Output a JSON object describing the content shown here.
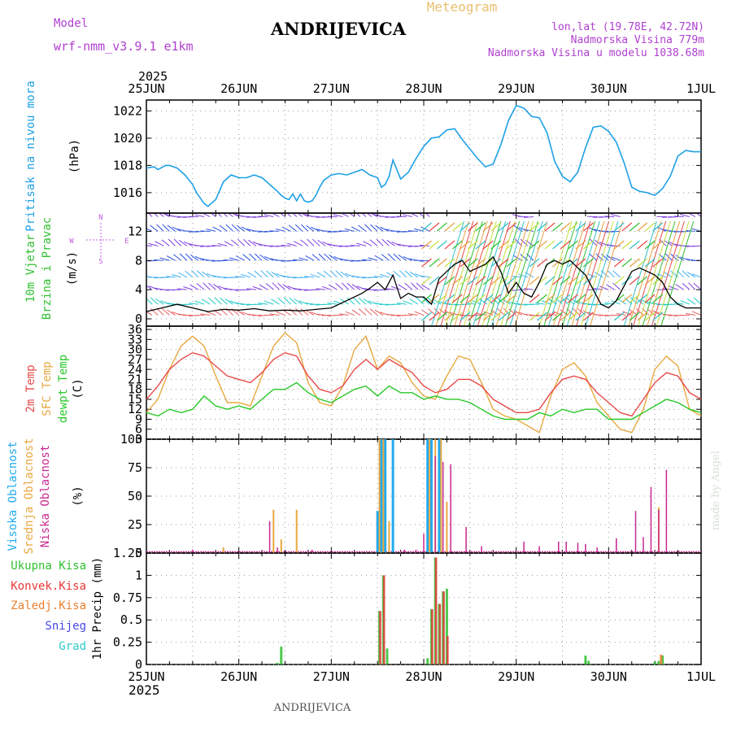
{
  "header": {
    "model_label": "Model",
    "model_value": "wrf-nmm_v3.9.1  e1km",
    "station": "ANDRIJEVICA",
    "product": "Meteogram",
    "coords": "lon,lat (19.78E, 42.72N)",
    "elevation": "Nadmorska Visina 779m",
    "model_elevation": "Nadmorska Visina u modelu 1038.68m",
    "footer_station": "ANDRIJEVICA",
    "credit": "made by Angel"
  },
  "colors": {
    "pressure": "#1ea0e6",
    "temp2m": "#e84848",
    "sfc": "#e8a840",
    "dew": "#28c828",
    "high_cloud": "#22aaee",
    "mid_cloud": "#e8a840",
    "low_cloud": "#c82890",
    "precip_total": "#30c030",
    "precip_conv": "#e83838",
    "precip_frozen": "#e88030",
    "snow": "#4848e8",
    "hail": "#30c8c8",
    "wind_speed_line": "#000000"
  },
  "chart_data": [
    {
      "type": "line",
      "id": "pressure",
      "top_dates": [
        "25JUN",
        "26JUN",
        "27JUN",
        "28JUN",
        "29JUN",
        "30JUN",
        "1JUL"
      ],
      "top_year": "2025",
      "ylabel_lines": [
        "Pritisak na nivou mora",
        "(hPa)"
      ],
      "yticks": [
        1016,
        1018,
        1020,
        1022
      ],
      "ylim": [
        1014.5,
        1022.8
      ],
      "xlim": [
        0,
        144
      ],
      "series": [
        {
          "x": [
            0,
            2,
            3,
            5,
            6,
            8,
            10,
            12,
            13,
            14,
            15,
            16,
            18,
            20,
            22,
            24,
            26,
            28,
            30,
            32,
            34,
            35,
            36,
            37,
            38,
            39,
            40,
            41,
            42,
            43,
            44,
            45,
            46,
            48,
            50,
            52,
            54,
            56,
            58,
            60,
            61,
            62,
            63,
            64,
            66,
            68,
            70,
            72,
            74,
            76,
            78,
            80,
            82,
            84,
            86,
            88,
            90,
            92,
            94,
            96,
            98,
            100,
            102,
            104,
            106,
            108,
            110,
            112,
            114,
            116,
            118,
            120,
            122,
            124,
            126,
            128,
            130,
            132,
            134,
            136,
            138,
            140,
            142,
            144
          ],
          "y": [
            1017.8,
            1017.9,
            1017.7,
            1018.0,
            1018.0,
            1017.8,
            1017.3,
            1016.6,
            1016.0,
            1015.6,
            1015.2,
            1015.0,
            1015.5,
            1016.8,
            1017.3,
            1017.1,
            1017.1,
            1017.3,
            1017.1,
            1016.6,
            1016.1,
            1015.8,
            1015.6,
            1015.5,
            1015.9,
            1015.4,
            1015.9,
            1015.4,
            1015.3,
            1015.4,
            1015.8,
            1016.4,
            1016.9,
            1017.3,
            1017.4,
            1017.3,
            1017.5,
            1017.7,
            1017.3,
            1017.1,
            1016.4,
            1016.6,
            1017.2,
            1018.4,
            1017.0,
            1017.5,
            1018.5,
            1019.4,
            1020.0,
            1020.1,
            1020.6,
            1020.7,
            1019.9,
            1019.2,
            1018.5,
            1017.9,
            1018.1,
            1019.5,
            1021.3,
            1022.4,
            1022.2,
            1021.6,
            1021.5,
            1020.4,
            1018.3,
            1017.2,
            1016.8,
            1017.5,
            1019.3,
            1020.8,
            1020.9,
            1020.5,
            1019.7,
            1018.2,
            1016.4,
            1016.1,
            1016.0,
            1015.8,
            1016.3,
            1017.2,
            1018.7,
            1019.1,
            1019.0,
            1019.0
          ]
        }
      ]
    },
    {
      "type": "line",
      "id": "wind",
      "ylabel_lines": [
        "10m Vjetar",
        "Brzina i Pravac",
        "(m/s)"
      ],
      "compass": {
        "n": "N",
        "e": "E",
        "s": "S",
        "w": "W"
      },
      "yticks": [
        0,
        4,
        8,
        12
      ],
      "ylim": [
        -1,
        14.5
      ],
      "xlim": [
        0,
        144
      ],
      "barb_levels": [
        0.5,
        2,
        4,
        5.7,
        8,
        10,
        12,
        14
      ],
      "barb_row_colors": [
        "#e86060",
        "#22c8c8",
        "#8040e0",
        "#40b0f0",
        "#2850e0",
        "#8040e0",
        "#2850e0",
        "#8040e0"
      ],
      "gust_zone_colors": [
        "#e8a040",
        "#e84848",
        "#c8e040",
        "#30c030",
        "#30c0c8"
      ],
      "gust_zones": [
        [
          74,
          96
        ],
        [
          102,
          116
        ],
        [
          124,
          134
        ]
      ],
      "series": [
        {
          "name": "Brzina",
          "x": [
            0,
            4,
            8,
            12,
            16,
            20,
            24,
            28,
            32,
            36,
            40,
            44,
            48,
            52,
            56,
            58,
            60,
            62,
            64,
            66,
            68,
            70,
            72,
            74,
            76,
            78,
            80,
            82,
            84,
            86,
            88,
            90,
            92,
            94,
            96,
            98,
            100,
            102,
            104,
            106,
            108,
            110,
            112,
            114,
            116,
            118,
            120,
            122,
            124,
            126,
            128,
            130,
            132,
            134,
            136,
            138,
            140,
            142,
            144
          ],
          "y": [
            1.0,
            1.5,
            2.0,
            1.5,
            1.0,
            1.3,
            1.2,
            1.4,
            1.1,
            1.2,
            1.1,
            1.3,
            1.5,
            2.5,
            3.5,
            4.2,
            5.0,
            4.0,
            6.0,
            2.8,
            3.5,
            3.0,
            3.0,
            2.0,
            5.5,
            6.5,
            7.5,
            8.0,
            6.5,
            7.0,
            7.5,
            8.5,
            6.5,
            3.5,
            5.0,
            3.5,
            3.0,
            5.0,
            7.5,
            8.0,
            7.5,
            8.0,
            7.0,
            6.0,
            4.0,
            2.0,
            1.5,
            2.5,
            4.5,
            6.5,
            7.0,
            6.5,
            6.0,
            5.0,
            3.0,
            2.0,
            1.5,
            1.5,
            1.5
          ]
        }
      ]
    },
    {
      "type": "line",
      "id": "temperature",
      "ylabel_lines": [
        "2m Temp",
        "SFC Temp",
        "dewpt Temp",
        "(C)"
      ],
      "yticks": [
        3,
        6,
        9,
        12,
        15,
        18,
        21,
        24,
        27,
        30,
        33,
        36
      ],
      "ylim": [
        3,
        37
      ],
      "xlim": [
        0,
        144
      ],
      "series": [
        {
          "name": "SFC Temp",
          "x": [
            0,
            3,
            6,
            9,
            12,
            15,
            18,
            21,
            24,
            27,
            30,
            33,
            36,
            39,
            42,
            45,
            48,
            51,
            54,
            57,
            60,
            63,
            66,
            69,
            72,
            75,
            78,
            81,
            84,
            87,
            90,
            93,
            96,
            99,
            102,
            105,
            108,
            111,
            114,
            117,
            120,
            123,
            126,
            129,
            132,
            135,
            138,
            141,
            144
          ],
          "y": [
            11,
            15,
            24,
            31,
            34,
            31,
            22,
            14,
            14,
            13,
            22,
            31,
            35,
            32,
            20,
            14,
            13,
            19,
            30,
            34,
            24,
            28,
            26,
            20,
            16,
            15,
            22,
            28,
            27,
            20,
            12,
            10,
            9,
            7,
            5,
            16,
            24,
            26,
            22,
            14,
            10,
            6,
            5,
            12,
            24,
            28,
            25,
            12,
            10
          ]
        },
        {
          "name": "2m Temp",
          "x": [
            0,
            3,
            6,
            9,
            12,
            15,
            18,
            21,
            24,
            27,
            30,
            33,
            36,
            39,
            42,
            45,
            48,
            51,
            54,
            57,
            60,
            63,
            66,
            69,
            72,
            75,
            78,
            81,
            84,
            87,
            90,
            93,
            96,
            99,
            102,
            105,
            108,
            111,
            114,
            117,
            120,
            123,
            126,
            129,
            132,
            135,
            138,
            141,
            144
          ],
          "y": [
            15,
            19,
            24,
            27,
            29,
            28,
            25,
            22,
            21,
            20,
            23,
            27,
            29,
            28,
            22,
            18,
            17,
            19,
            24,
            27,
            24,
            27,
            25,
            23,
            19,
            17,
            18,
            21,
            21,
            19,
            15,
            13,
            11,
            11,
            12,
            17,
            21,
            22,
            21,
            17,
            14,
            11,
            10,
            15,
            20,
            23,
            22,
            17,
            15
          ]
        },
        {
          "name": "dewpt Temp",
          "x": [
            0,
            3,
            6,
            9,
            12,
            15,
            18,
            21,
            24,
            27,
            30,
            33,
            36,
            39,
            42,
            45,
            48,
            51,
            54,
            57,
            60,
            63,
            66,
            69,
            72,
            75,
            78,
            81,
            84,
            87,
            90,
            93,
            96,
            99,
            102,
            105,
            108,
            111,
            114,
            117,
            120,
            123,
            126,
            129,
            132,
            135,
            138,
            141,
            144
          ],
          "y": [
            11,
            10,
            12,
            11,
            12,
            16,
            13,
            12,
            13,
            12,
            15,
            18,
            18,
            20,
            17,
            15,
            14,
            16,
            18,
            19,
            16,
            19,
            17,
            17,
            15,
            16,
            15,
            15,
            14,
            12,
            10,
            9,
            9,
            9,
            11,
            10,
            12,
            11,
            12,
            12,
            9,
            9,
            9,
            11,
            13,
            15,
            14,
            12,
            11
          ]
        }
      ]
    },
    {
      "type": "bar",
      "id": "clouds",
      "ylabel_lines": [
        "Visoka Oblacnost",
        "Srednja Oblacnost",
        "Niska Oblacnost",
        "(%)"
      ],
      "yticks": [
        0,
        25,
        50,
        75,
        100
      ],
      "ylim": [
        0,
        100
      ],
      "xlim": [
        0,
        144
      ],
      "series": [
        {
          "name": "Visoka Oblacnost",
          "x": [
            60,
            61,
            62,
            64,
            73,
            74,
            76
          ],
          "values": [
            37,
            100,
            100,
            100,
            100,
            100,
            100
          ]
        },
        {
          "name": "Srednja Oblacnost",
          "x": [
            20,
            33,
            35,
            39,
            60.5,
            61.5,
            63,
            73.5,
            75,
            76.5,
            78,
            133
          ],
          "values": [
            5,
            38,
            12,
            38,
            100,
            100,
            28,
            100,
            100,
            100,
            45,
            40
          ]
        },
        {
          "name": "Niska Oblacnost",
          "x": [
            12,
            32,
            34,
            43,
            67,
            70,
            72,
            75,
            77,
            79,
            83,
            87,
            98,
            102,
            107,
            109,
            112,
            114,
            117,
            122,
            127,
            129,
            131,
            133,
            135
          ],
          "values": [
            3,
            28,
            5,
            3,
            3,
            3,
            17,
            85,
            80,
            78,
            23,
            6,
            10,
            6,
            10,
            10,
            9,
            8,
            5,
            13,
            37,
            14,
            58,
            38,
            73
          ]
        }
      ]
    },
    {
      "type": "bar",
      "id": "precip",
      "legend": [
        "Ukupna Kisa",
        "Konvek.Kisa",
        "Zaledj.Kisa",
        "Snijeg",
        "Grad"
      ],
      "ylabel": "1hr Precip (mm)",
      "yticks": [
        0,
        0.25,
        0.5,
        0.75,
        1,
        1.25
      ],
      "ytick_labels": [
        "0",
        "0.25",
        "0.5",
        "0.75",
        "1",
        "1.25"
      ],
      "ylim": [
        0,
        1.25
      ],
      "xlim": [
        0,
        144
      ],
      "bottom_dates": [
        "25JUN",
        "26JUN",
        "27JUN",
        "28JUN",
        "29JUN",
        "30JUN",
        "1JUL"
      ],
      "bottom_year": "2025",
      "series": [
        {
          "name": "Ukupna Kisa",
          "x": [
            34,
            35,
            60.5,
            61.5,
            62.5,
            73,
            74,
            75,
            76,
            77,
            78,
            114,
            114.8,
            132,
            133,
            134
          ],
          "values": [
            0.02,
            0.2,
            0.6,
            1.0,
            0.18,
            0.07,
            0.62,
            1.2,
            0.68,
            0.82,
            0.85,
            0.1,
            0.04,
            0.03,
            0.04,
            0.1
          ]
        },
        {
          "name": "Konvek.Kisa",
          "x": [
            60.7,
            61.7,
            74.2,
            75.2,
            76.2,
            77.2,
            78.2
          ],
          "values": [
            0.6,
            1.0,
            0.62,
            1.2,
            0.68,
            0.82,
            0.32
          ]
        },
        {
          "name": "Zaledj.Kisa",
          "x": [
            133.6
          ],
          "values": [
            0.11
          ]
        }
      ]
    }
  ]
}
